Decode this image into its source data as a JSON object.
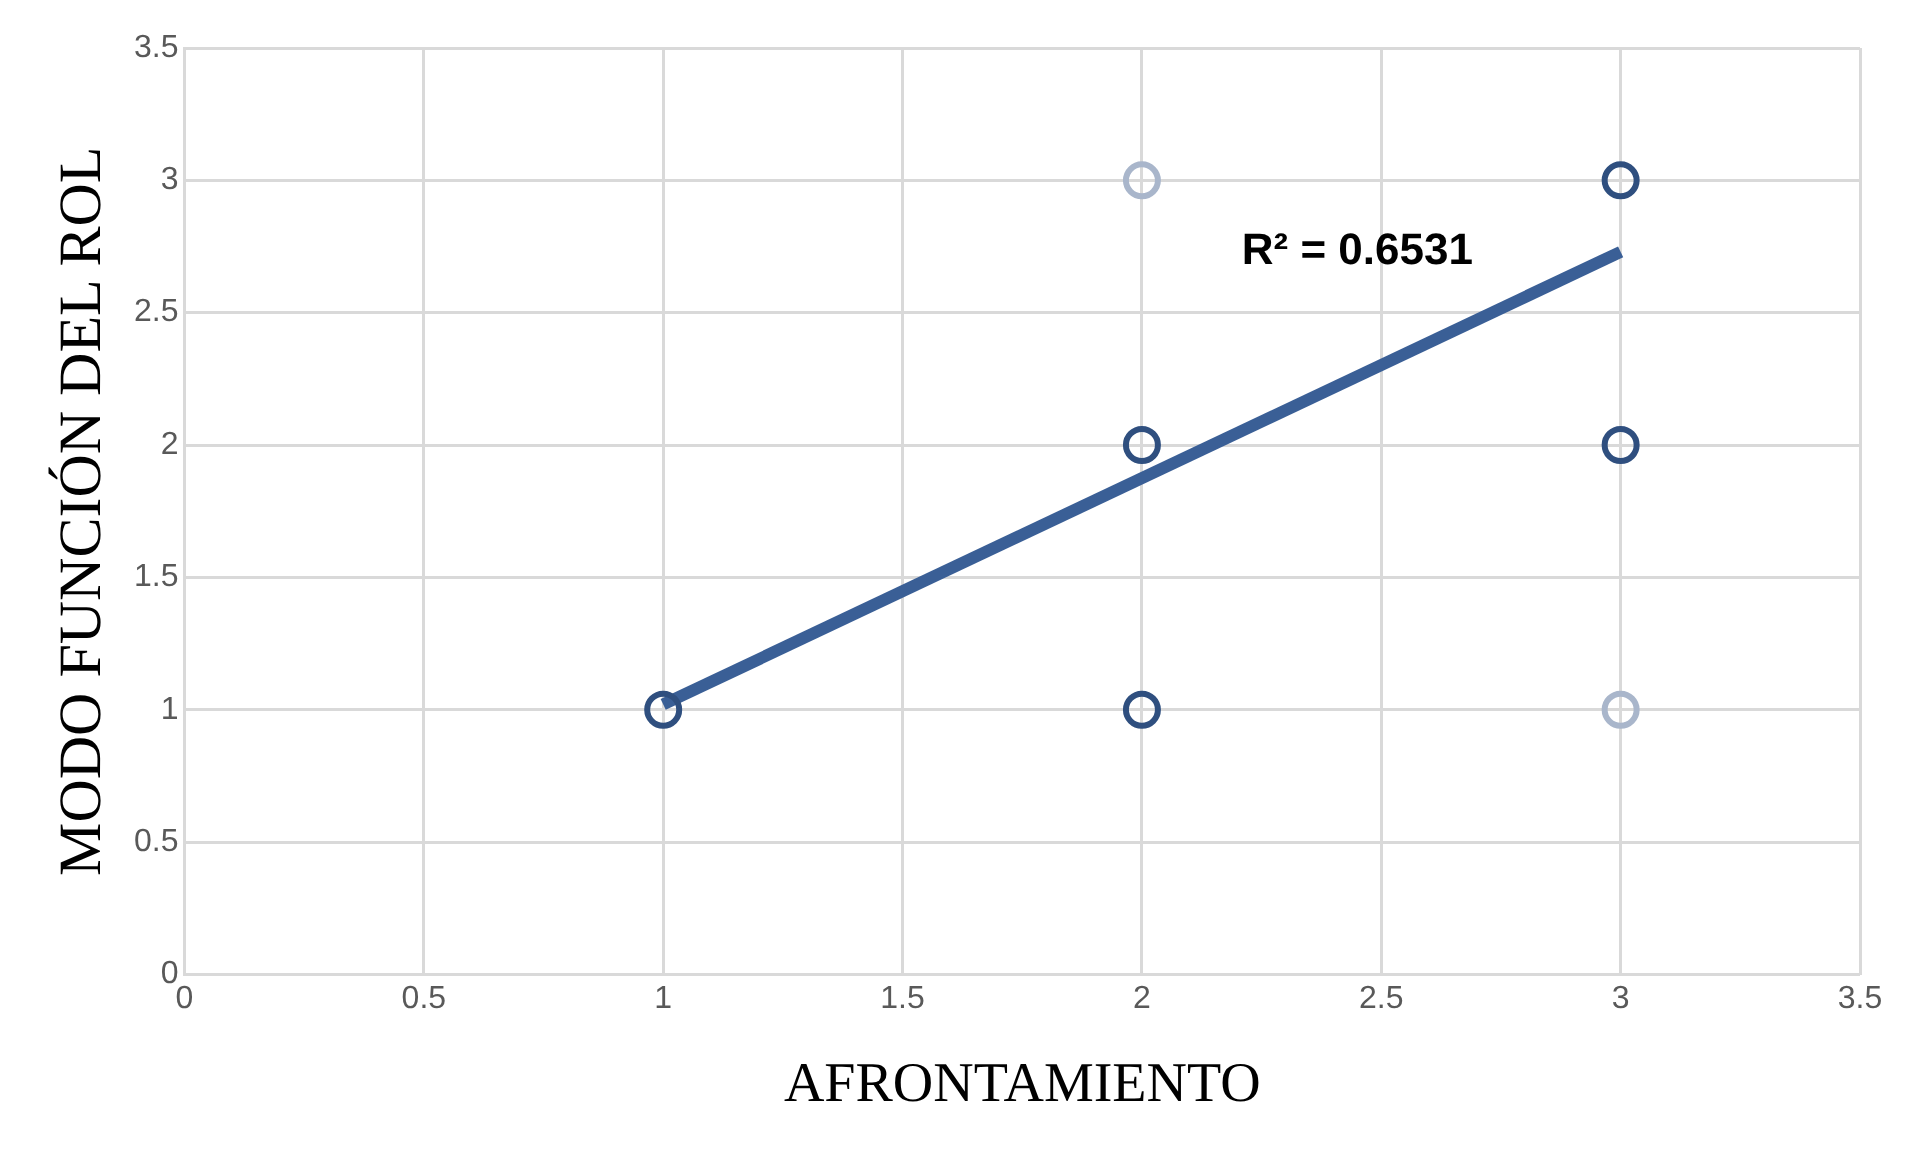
{
  "chart_data": {
    "type": "scatter",
    "xlabel": "AFRONTAMIENTO",
    "ylabel": "MODO FUNCIÓN DEL ROL",
    "xlim": [
      0,
      3.5
    ],
    "ylim": [
      0,
      3.5
    ],
    "xticks": [
      0,
      0.5,
      1,
      1.5,
      2,
      2.5,
      3,
      3.5
    ],
    "yticks": [
      0,
      0.5,
      1,
      1.5,
      2,
      2.5,
      3,
      3.5
    ],
    "grid": true,
    "legend": false,
    "marker": "circle",
    "series": [
      {
        "x": [
          1,
          2,
          2,
          2,
          3,
          3,
          3
        ],
        "values": [
          1,
          1,
          2,
          3,
          1,
          2,
          3
        ],
        "color": "#2f4f7f",
        "colors": [
          "#2f4f7f",
          "#2f4f7f",
          "#2f4f7f",
          "#a9b6cb",
          "#a9b6cb",
          "#2f4f7f",
          "#2f4f7f"
        ]
      },
      {
        "type": "line",
        "x": [
          1,
          3
        ],
        "values": [
          1.02,
          2.73
        ],
        "color": "#3a5f96",
        "marker": "none",
        "line_style": "solid"
      }
    ],
    "annotations": [
      "R² = 0.6531"
    ]
  }
}
